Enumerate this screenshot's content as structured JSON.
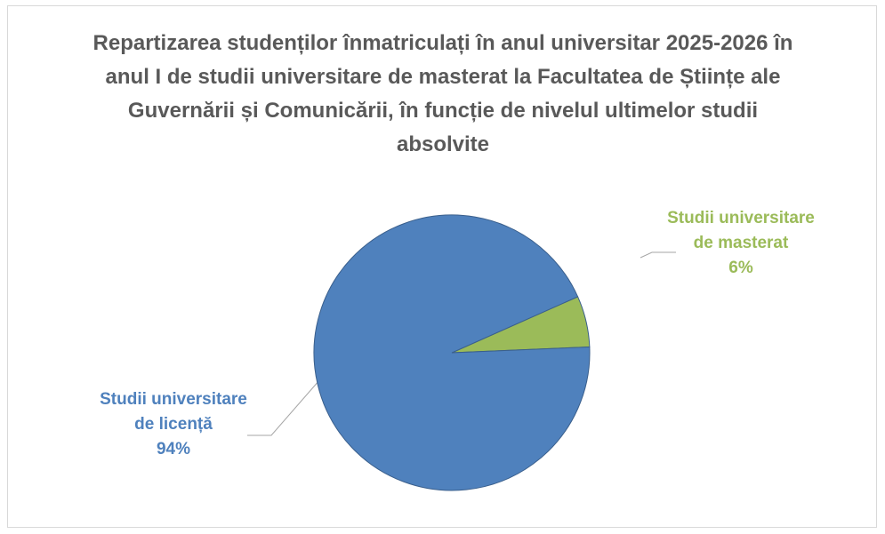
{
  "chart_data": {
    "type": "pie",
    "title": "Repartizarea studenților înmatriculați în anul universitar 2025-2026 în anul I de studii universitare de masterat la Facultatea de Științe ale Guvernării și Comunicării, în funcție de nivelul ultimelor studii absolvite",
    "categories": [
      "Studii universitare de licență",
      "Studii universitare de masterat"
    ],
    "values": [
      94,
      6
    ],
    "value_labels": [
      "94%",
      "6%"
    ],
    "colors": [
      "#4f81bd",
      "#9bbb59"
    ]
  }
}
